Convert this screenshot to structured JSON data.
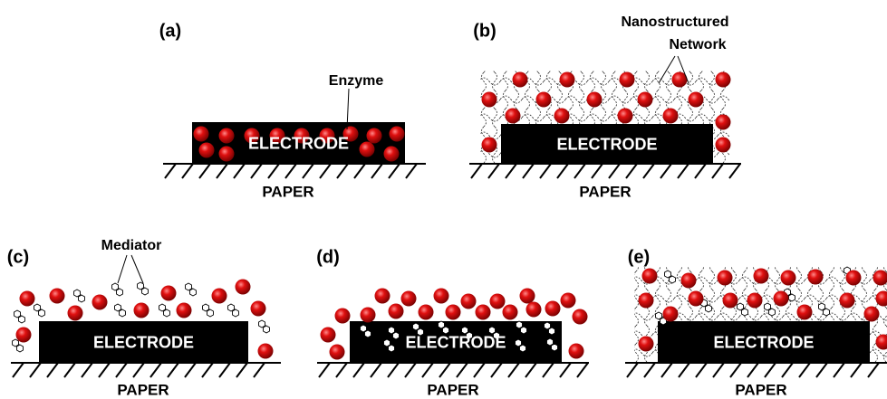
{
  "panels": [
    {
      "label": "(a)",
      "electrode": "ELECTRODE",
      "substrate": "PAPER",
      "annotation": [
        "Enzyme"
      ]
    },
    {
      "label": "(b)",
      "electrode": "ELECTRODE",
      "substrate": "PAPER",
      "annotation": [
        "Nanostructured",
        "Network"
      ]
    },
    {
      "label": "(c)",
      "electrode": "ELECTRODE",
      "substrate": "PAPER",
      "annotation": [
        "Mediator"
      ]
    },
    {
      "label": "(d)",
      "electrode": "ELECTRODE",
      "substrate": "PAPER"
    },
    {
      "label": "(e)",
      "electrode": "ELECTRODE",
      "substrate": "PAPER"
    }
  ]
}
